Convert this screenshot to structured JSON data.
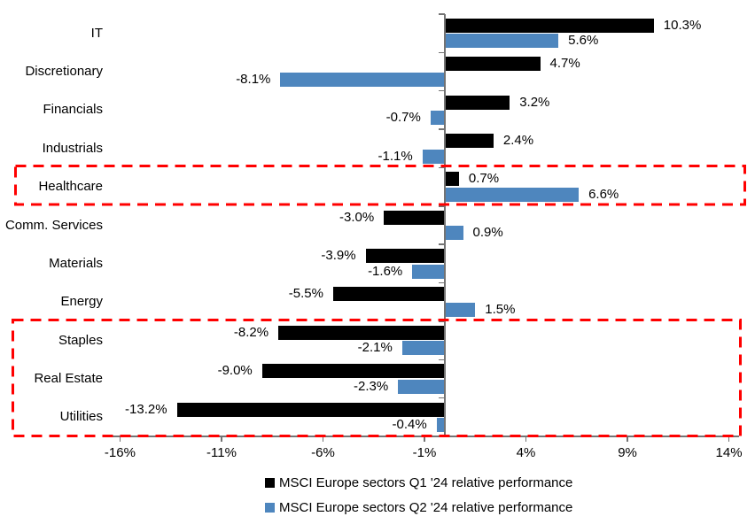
{
  "chart_data": {
    "type": "bar",
    "orientation": "horizontal",
    "title": "",
    "categories": [
      "IT",
      "Discretionary",
      "Financials",
      "Industrials",
      "Healthcare",
      "Comm. Services",
      "Materials",
      "Energy",
      "Staples",
      "Real Estate",
      "Utilities"
    ],
    "series": [
      {
        "name": "MSCI Europe sectors Q1 '24 relative performance",
        "color": "#000000",
        "values": [
          10.3,
          4.7,
          3.2,
          2.4,
          0.7,
          -3.0,
          -3.9,
          -5.5,
          -8.2,
          -9.0,
          -13.2
        ],
        "labels": [
          "10.3%",
          "4.7%",
          "3.2%",
          "2.4%",
          "0.7%",
          "-3.0%",
          "-3.9%",
          "-5.5%",
          "-8.2%",
          "-9.0%",
          "-13.2%"
        ]
      },
      {
        "name": "MSCI Europe sectors Q2 '24 relative performance",
        "color": "#4E86BE",
        "values": [
          5.6,
          -8.1,
          -0.7,
          -1.1,
          6.6,
          0.9,
          -1.6,
          1.5,
          -2.1,
          -2.3,
          -0.4
        ],
        "labels": [
          "5.6%",
          "-8.1%",
          "-0.7%",
          "-1.1%",
          "6.6%",
          "0.9%",
          "-1.6%",
          "1.5%",
          "-2.1%",
          "-2.3%",
          "-0.4%"
        ]
      }
    ],
    "x_axis": {
      "min": -16.5,
      "max": 14.5,
      "ticks": [
        -16,
        -11,
        -6,
        -1,
        4,
        9,
        14
      ],
      "tick_labels": [
        "-16%",
        "-11%",
        "-6%",
        "-1%",
        "4%",
        "9%",
        "14%"
      ]
    },
    "grid": false,
    "legend_position": "bottom",
    "axis_color": "#737373",
    "annotations": {
      "highlight_color": "#FF0000",
      "highlight_boxes": [
        {
          "id": "healthcare-highlight",
          "rows": [
            "Healthcare"
          ]
        },
        {
          "id": "defensives-highlight",
          "rows": [
            "Staples",
            "Real Estate",
            "Utilities"
          ]
        }
      ]
    }
  }
}
